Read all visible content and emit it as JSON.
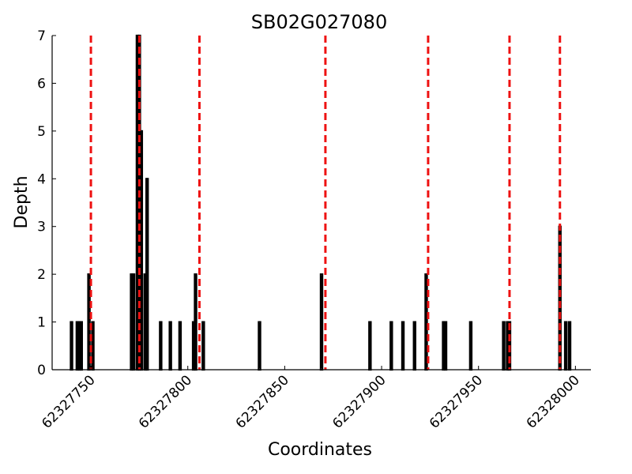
{
  "chart_data": {
    "type": "bar",
    "title": "SB02G027080",
    "xlabel": "Coordinates",
    "ylabel": "Depth",
    "xlim": [
      62327730,
      62328008
    ],
    "ylim": [
      0,
      7
    ],
    "x_ticks": [
      62327750,
      62327800,
      62327850,
      62327900,
      62327950,
      62328000
    ],
    "x_tick_labels": [
      "62327750",
      "62327800",
      "62327850",
      "62327900",
      "62327950",
      "62328000"
    ],
    "y_ticks": [
      0,
      1,
      2,
      3,
      4,
      5,
      6,
      7
    ],
    "y_tick_labels": [
      "0",
      "1",
      "2",
      "3",
      "4",
      "5",
      "6",
      "7"
    ],
    "series": [
      {
        "name": "depth",
        "points": [
          {
            "x": 62327740,
            "y": 1
          },
          {
            "x": 62327743,
            "y": 1
          },
          {
            "x": 62327744,
            "y": 1
          },
          {
            "x": 62327745,
            "y": 1
          },
          {
            "x": 62327749,
            "y": 2
          },
          {
            "x": 62327751,
            "y": 1
          },
          {
            "x": 62327771,
            "y": 2
          },
          {
            "x": 62327772,
            "y": 2
          },
          {
            "x": 62327774,
            "y": 7
          },
          {
            "x": 62327775,
            "y": 7
          },
          {
            "x": 62327776,
            "y": 5
          },
          {
            "x": 62327778,
            "y": 2
          },
          {
            "x": 62327779,
            "y": 4
          },
          {
            "x": 62327786,
            "y": 1
          },
          {
            "x": 62327791,
            "y": 1
          },
          {
            "x": 62327796,
            "y": 1
          },
          {
            "x": 62327803,
            "y": 1
          },
          {
            "x": 62327804,
            "y": 2
          },
          {
            "x": 62327808,
            "y": 1
          },
          {
            "x": 62327837,
            "y": 1
          },
          {
            "x": 62327869,
            "y": 2
          },
          {
            "x": 62327894,
            "y": 1
          },
          {
            "x": 62327905,
            "y": 1
          },
          {
            "x": 62327911,
            "y": 1
          },
          {
            "x": 62327917,
            "y": 1
          },
          {
            "x": 62327923,
            "y": 2
          },
          {
            "x": 62327932,
            "y": 1
          },
          {
            "x": 62327933,
            "y": 1
          },
          {
            "x": 62327946,
            "y": 1
          },
          {
            "x": 62327963,
            "y": 1
          },
          {
            "x": 62327965,
            "y": 1
          },
          {
            "x": 62327966,
            "y": 1
          },
          {
            "x": 62327992,
            "y": 3
          },
          {
            "x": 62327995,
            "y": 1
          },
          {
            "x": 62327997,
            "y": 1
          }
        ]
      }
    ],
    "markers": [
      62327750,
      62327775,
      62327806,
      62327871,
      62327924,
      62327966,
      62327992
    ],
    "marker_color": "#ee1111"
  }
}
